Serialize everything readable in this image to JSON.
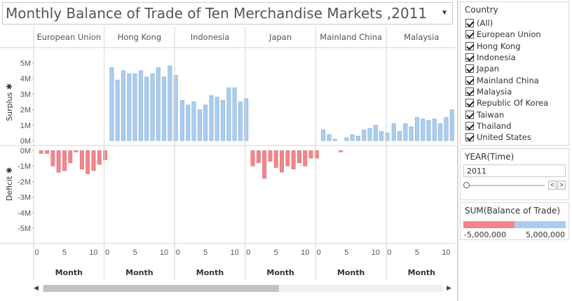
{
  "title": "Monthly Balance of Trade of Ten Merchandise Markets ,2011",
  "colors": {
    "positive": "#a9cdf0",
    "negative": "#f1858b",
    "stroke": "#6f96bd",
    "neg_stroke": "#d8666d"
  },
  "country_filter": {
    "title": "Country",
    "items": [
      "(All)",
      "European Union",
      "Hong Kong",
      "Indonesia",
      "Japan",
      "Mainland China",
      "Malaysia",
      "Republic Of Korea",
      "Taiwan",
      "Thailand",
      "United States"
    ]
  },
  "year_filter": {
    "title": "YEAR(Time)",
    "value": "2011"
  },
  "color_legend": {
    "title": "SUM(Balance of Trade)",
    "min_label": "-5,000,000",
    "max_label": "5,000,000"
  },
  "chart_data": {
    "type": "bar",
    "panels": [
      "European Union",
      "Hong Kong",
      "Indonesia",
      "Japan",
      "Mainland China",
      "Malaysia"
    ],
    "x": [
      1,
      2,
      3,
      4,
      5,
      6,
      7,
      8,
      9,
      10,
      11,
      12
    ],
    "xlabel": "Month",
    "x_ticks": [
      "0",
      "5",
      "10"
    ],
    "surplus": {
      "ylabel": "Surplus",
      "ylim": [
        0,
        5500000
      ],
      "ticks": [
        "0M",
        "1M",
        "2M",
        "3M",
        "4M",
        "5M"
      ]
    },
    "deficit": {
      "ylabel": "Deficit",
      "ylim": [
        -5500000,
        0
      ],
      "ticks": [
        "0M",
        "-1M",
        "-2M",
        "-3M",
        "-4M",
        "-5M"
      ]
    },
    "series": [
      {
        "name": "European Union",
        "values": [
          -200000,
          -200000,
          -1000000,
          -1400000,
          -1300000,
          -800000,
          -100000,
          -1200000,
          -1500000,
          -1300000,
          -900000,
          -600000
        ]
      },
      {
        "name": "Hong Kong",
        "values": [
          4700000,
          3900000,
          4500000,
          4300000,
          4300000,
          4500000,
          4100000,
          4300000,
          4700000,
          4100000,
          4800000,
          4200000
        ]
      },
      {
        "name": "Indonesia",
        "values": [
          2600000,
          2300000,
          2500000,
          2000000,
          2300000,
          2900000,
          2800000,
          2600000,
          3400000,
          3400000,
          2500000,
          2700000
        ]
      },
      {
        "name": "Japan",
        "values": [
          -1000000,
          -800000,
          -1800000,
          -700000,
          -1100000,
          -1400000,
          -1000000,
          -1200000,
          -800000,
          -1000000,
          -500000,
          -500000
        ]
      },
      {
        "name": "Mainland China",
        "values": [
          700000,
          400000,
          100000,
          -100000,
          200000,
          400000,
          300000,
          700000,
          800000,
          1000000,
          600000,
          500000
        ]
      },
      {
        "name": "Malaysia",
        "values": [
          1100000,
          600000,
          1100000,
          900000,
          1500000,
          1400000,
          1300000,
          1400000,
          1100000,
          1500000,
          2000000,
          0
        ]
      }
    ]
  }
}
